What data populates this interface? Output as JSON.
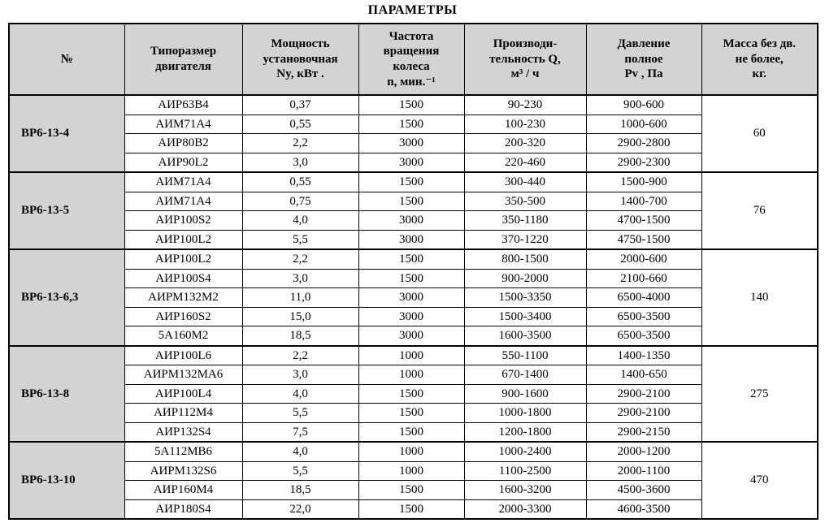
{
  "title": "ПАРАМЕТРЫ",
  "table": {
    "columns": [
      {
        "key": "num",
        "label": "№"
      },
      {
        "key": "motor",
        "label": "Типоразмер\nдвигателя"
      },
      {
        "key": "power",
        "label": "Мощность\nустановочная\nNy, кВт ."
      },
      {
        "key": "freq",
        "label": "Частота\nвращения\nколеса\nn, мин.⁻¹"
      },
      {
        "key": "capacity",
        "label": "Производи-\nтельность Q,\nм³ / ч"
      },
      {
        "key": "pressure",
        "label": "Давление\nполное\nPv , Па"
      },
      {
        "key": "mass",
        "label": "Масса без дв.\nне более,\nкг."
      }
    ],
    "groups": [
      {
        "name": "ВР6-13-4",
        "mass": "60",
        "rows": [
          [
            "АИР63В4",
            "0,37",
            "1500",
            "90-230",
            "900-600"
          ],
          [
            "АИМ71А4",
            "0,55",
            "1500",
            "100-230",
            "1000-600"
          ],
          [
            "АИР80В2",
            "2,2",
            "3000",
            "200-320",
            "2900-2800"
          ],
          [
            "АИР90L2",
            "3,0",
            "3000",
            "220-460",
            "2900-2300"
          ]
        ]
      },
      {
        "name": "ВР6-13-5",
        "mass": "76",
        "rows": [
          [
            "АИМ71А4",
            "0,55",
            "1500",
            "300-440",
            "1500-900"
          ],
          [
            "АИМ71А4",
            "0,75",
            "1500",
            "350-500",
            "1400-700"
          ],
          [
            "АИР100S2",
            "4,0",
            "3000",
            "350-1180",
            "4700-1500"
          ],
          [
            "АИР100L2",
            "5,5",
            "3000",
            "370-1220",
            "4750-1500"
          ]
        ]
      },
      {
        "name": "ВР6-13-6,3",
        "mass": "140",
        "rows": [
          [
            "АИР100L2",
            "2,2",
            "1500",
            "800-1500",
            "2000-600"
          ],
          [
            "АИР100S4",
            "3,0",
            "1500",
            "900-2000",
            "2100-660"
          ],
          [
            "АИРМ132М2",
            "11,0",
            "3000",
            "1500-3350",
            "6500-4000"
          ],
          [
            "АИР160S2",
            "15,0",
            "3000",
            "1500-3400",
            "6500-3500"
          ],
          [
            "5А160М2",
            "18,5",
            "3000",
            "1600-3500",
            "6500-3500"
          ]
        ]
      },
      {
        "name": "ВР6-13-8",
        "mass": "275",
        "rows": [
          [
            "АИР100L6",
            "2,2",
            "1000",
            "550-1100",
            "1400-1350"
          ],
          [
            "АИРМ132МА6",
            "3,0",
            "1000",
            "670-1400",
            "1400-650"
          ],
          [
            "АИР100L4",
            "4,0",
            "1500",
            "900-1600",
            "2900-2100"
          ],
          [
            "АИР112М4",
            "5,5",
            "1500",
            "1000-1800",
            "2900-2100"
          ],
          [
            "АИР132S4",
            "7,5",
            "1500",
            "1200-1800",
            "2900-2150"
          ]
        ]
      },
      {
        "name": "ВР6-13-10",
        "mass": "470",
        "rows": [
          [
            "5А112МВ6",
            "4,0",
            "1000",
            "1000-2400",
            "2000-1200"
          ],
          [
            "АИРМ132S6",
            "5,5",
            "1000",
            "1100-2500",
            "2000-1100"
          ],
          [
            "АИР160М4",
            "18,5",
            "1500",
            "1600-3200",
            "4500-3600"
          ],
          [
            "АИР180S4",
            "22,0",
            "1500",
            "2000-3300",
            "4600-3500"
          ]
        ]
      }
    ]
  },
  "colors": {
    "header_bg": "#d3d3d3",
    "border": "#000000",
    "page_bg": "#ffffff"
  }
}
